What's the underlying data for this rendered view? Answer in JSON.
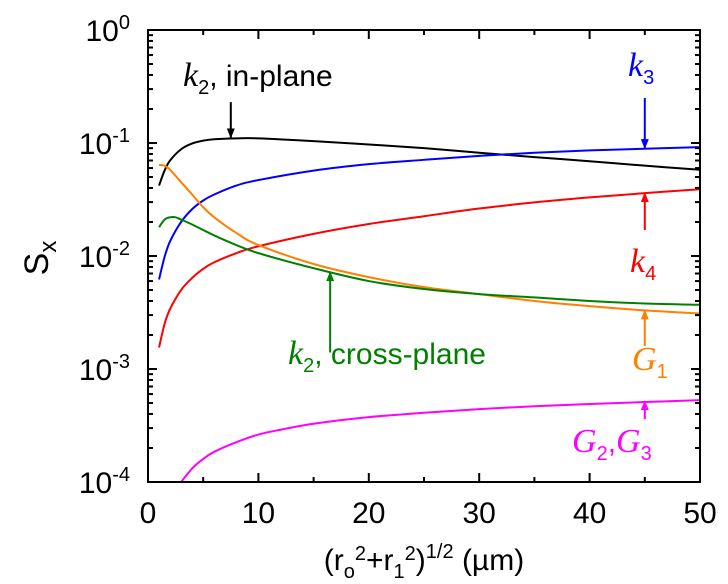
{
  "chart_data": {
    "type": "line",
    "xlabel": {
      "pre": "(r",
      "s1": "o",
      "p1": "2",
      "mid": "+r",
      "s2": "1",
      "p2": "2",
      "post": ")",
      "p3": "1/2",
      "unit": " (µm)"
    },
    "ylabel": {
      "base": "S",
      "sub": "x"
    },
    "xlim": [
      0,
      50
    ],
    "ylim": [
      0.0001,
      1
    ],
    "yscale": "log",
    "grid": false,
    "xticks": [
      "0",
      "10",
      "20",
      "30",
      "40",
      "50"
    ],
    "yticks": [
      {
        "base": "10",
        "exp": "0",
        "value": 1
      },
      {
        "base": "10",
        "exp": "-1",
        "value": 0.1
      },
      {
        "base": "10",
        "exp": "-2",
        "value": 0.01
      },
      {
        "base": "10",
        "exp": "-3",
        "value": 0.001
      },
      {
        "base": "10",
        "exp": "-4",
        "value": 0.0001
      }
    ],
    "series": [
      {
        "color": "#000000",
        "x": [
          1,
          1.5,
          2,
          3,
          4,
          5,
          6,
          8,
          10,
          15,
          20,
          25,
          30,
          35,
          40,
          45,
          50
        ],
        "y": [
          0.042,
          0.057,
          0.07,
          0.088,
          0.099,
          0.105,
          0.108,
          0.11,
          0.11,
          0.104,
          0.097,
          0.09,
          0.082,
          0.075,
          0.069,
          0.063,
          0.058
        ]
      },
      {
        "color": "#0000ff",
        "x": [
          1,
          1.5,
          2,
          3,
          4,
          5,
          6,
          8,
          10,
          15,
          20,
          25,
          30,
          35,
          40,
          45,
          50
        ],
        "y": [
          0.0062,
          0.0098,
          0.0135,
          0.02,
          0.026,
          0.031,
          0.035,
          0.042,
          0.047,
          0.057,
          0.065,
          0.071,
          0.077,
          0.082,
          0.086,
          0.089,
          0.092
        ]
      },
      {
        "color": "#ff0000",
        "x": [
          1,
          1.5,
          2,
          3,
          4,
          5,
          6,
          8,
          10,
          15,
          20,
          25,
          30,
          35,
          40,
          45,
          50
        ],
        "y": [
          0.00155,
          0.0025,
          0.0034,
          0.005,
          0.0064,
          0.0077,
          0.0088,
          0.0106,
          0.0122,
          0.0157,
          0.0192,
          0.0225,
          0.0263,
          0.0298,
          0.033,
          0.036,
          0.039
        ]
      },
      {
        "color": "#ff8000",
        "x": [
          1,
          1.5,
          2,
          3,
          4,
          5,
          6,
          8,
          10,
          15,
          20,
          25,
          30,
          35,
          40,
          45,
          50
        ],
        "y": [
          0.064,
          0.063,
          0.058,
          0.045,
          0.035,
          0.027,
          0.022,
          0.016,
          0.0125,
          0.0085,
          0.0065,
          0.0053,
          0.0046,
          0.004,
          0.0036,
          0.0033,
          0.0031
        ]
      },
      {
        "color": "#008000",
        "x": [
          1,
          1.5,
          2,
          2.5,
          3,
          4,
          5,
          6,
          8,
          10,
          15,
          20,
          25,
          30,
          35,
          40,
          45,
          50
        ],
        "y": [
          0.018,
          0.021,
          0.022,
          0.022,
          0.021,
          0.019,
          0.017,
          0.0152,
          0.0125,
          0.0106,
          0.0078,
          0.006,
          0.0051,
          0.0046,
          0.0043,
          0.004,
          0.0038,
          0.0037
        ]
      },
      {
        "color": "#ff00ff",
        "x": [
          3,
          4,
          5,
          6,
          8,
          10,
          12,
          15,
          20,
          25,
          30,
          35,
          40,
          45,
          50
        ],
        "y": [
          0.0001,
          0.000132,
          0.00016,
          0.000185,
          0.000225,
          0.000263,
          0.00029,
          0.000328,
          0.000375,
          0.00041,
          0.000442,
          0.000468,
          0.00049,
          0.00051,
          0.00053
        ]
      }
    ],
    "annotations": [
      {
        "id": "k2-in-plane",
        "color": "#000000",
        "main": "k",
        "sub": "2",
        "rest": ", in-plane",
        "arrow_x": 7.5,
        "arrow_y_from": 0.23,
        "arrow_y_to": 0.112
      },
      {
        "id": "k3",
        "color": "#0000ff",
        "main": "k",
        "sub": "3",
        "rest": "",
        "arrow_x": 45,
        "arrow_y_from": 0.25,
        "arrow_y_to": 0.09
      },
      {
        "id": "k4",
        "color": "#ff0000",
        "main": "k",
        "sub": "4",
        "rest": "",
        "arrow_x": 45,
        "arrow_y_from": 0.017,
        "arrow_y_to": 0.036
      },
      {
        "id": "k2-cross-plane",
        "color": "#008000",
        "main": "k",
        "sub": "2",
        "rest": ", cross-plane",
        "arrow_x": 16.5,
        "arrow_y_from": 0.0014,
        "arrow_y_to": 0.0072
      },
      {
        "id": "G1",
        "color": "#ff8000",
        "main": "G",
        "sub": "1",
        "rest": "",
        "arrow_x": 45,
        "arrow_y_from": 0.0016,
        "arrow_y_to": 0.0033
      },
      {
        "id": "G2G3",
        "color": "#ff00ff",
        "main": "G",
        "sub": "2",
        "mid": ",",
        "main2": "G",
        "sub2": "3",
        "arrow_x": 45,
        "arrow_y_from": 0.00036,
        "arrow_y_to": 0.00052
      }
    ]
  }
}
